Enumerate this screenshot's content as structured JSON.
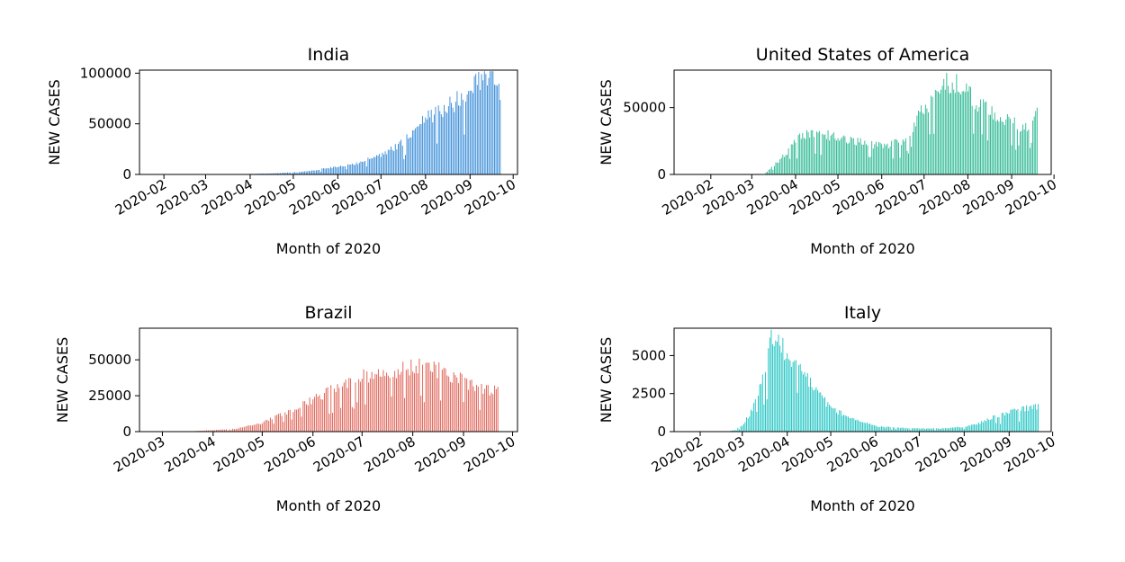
{
  "chart_data": [
    {
      "type": "bar",
      "title": "India",
      "xlabel": "Month of 2020",
      "ylabel": "NEW CASES",
      "color": "#2e86d6",
      "xlim": [
        "2020-01-15",
        "2020-10-04"
      ],
      "ylim": [
        0,
        103000
      ],
      "xticks": [
        "2020-02",
        "2020-03",
        "2020-04",
        "2020-05",
        "2020-06",
        "2020-07",
        "2020-08",
        "2020-09",
        "2020-10"
      ],
      "yticks": [
        0,
        50000,
        100000
      ],
      "ytick_labels": [
        "0",
        "50000",
        "100000"
      ],
      "grid": false,
      "legend": "none",
      "start_date": "2020-01-30",
      "end_date": "2020-09-22",
      "series": [
        {
          "points": [
            [
              "2020-01-30",
              0
            ],
            [
              "2020-03-01",
              5
            ],
            [
              "2020-03-15",
              30
            ],
            [
              "2020-03-25",
              100
            ],
            [
              "2020-04-01",
              500
            ],
            [
              "2020-04-15",
              1000
            ],
            [
              "2020-05-01",
              2000
            ],
            [
              "2020-05-15",
              3800
            ],
            [
              "2020-06-01",
              8000
            ],
            [
              "2020-06-15",
              11000
            ],
            [
              "2020-07-01",
              19000
            ],
            [
              "2020-07-15",
              30000
            ],
            [
              "2020-08-01",
              55000
            ],
            [
              "2020-08-15",
              64000
            ],
            [
              "2020-09-01",
              80000
            ],
            [
              "2020-09-10",
              95000
            ],
            [
              "2020-09-16",
              97000
            ],
            [
              "2020-09-20",
              90000
            ],
            [
              "2020-09-22",
              76000
            ]
          ]
        }
      ]
    },
    {
      "type": "bar",
      "title": "United States of America",
      "xlabel": "Month of 2020",
      "ylabel": "NEW CASES",
      "color": "#1bb38a",
      "xlim": [
        "2020-01-06",
        "2020-09-29"
      ],
      "ylim": [
        0,
        78000
      ],
      "xticks": [
        "2020-02",
        "2020-03",
        "2020-04",
        "2020-05",
        "2020-06",
        "2020-07",
        "2020-08",
        "2020-09",
        "2020-10"
      ],
      "yticks": [
        0,
        50000
      ],
      "ytick_labels": [
        "0",
        "50000"
      ],
      "grid": false,
      "legend": "none",
      "start_date": "2020-01-21",
      "end_date": "2020-09-19",
      "series": [
        {
          "points": [
            [
              "2020-01-21",
              0
            ],
            [
              "2020-03-01",
              20
            ],
            [
              "2020-03-10",
              300
            ],
            [
              "2020-03-20",
              10000
            ],
            [
              "2020-03-27",
              18000
            ],
            [
              "2020-04-05",
              30000
            ],
            [
              "2020-04-15",
              30000
            ],
            [
              "2020-05-01",
              28000
            ],
            [
              "2020-05-15",
              24000
            ],
            [
              "2020-06-01",
              21000
            ],
            [
              "2020-06-15",
              24000
            ],
            [
              "2020-07-01",
              48000
            ],
            [
              "2020-07-15",
              66000
            ],
            [
              "2020-07-25",
              68000
            ],
            [
              "2020-08-05",
              55000
            ],
            [
              "2020-08-15",
              47000
            ],
            [
              "2020-09-01",
              40000
            ],
            [
              "2020-09-10",
              33000
            ],
            [
              "2020-09-19",
              44000
            ]
          ]
        }
      ]
    },
    {
      "type": "bar",
      "title": "Brazil",
      "xlabel": "Month of 2020",
      "ylabel": "NEW CASES",
      "color": "#e0665a",
      "xlim": [
        "2020-02-16",
        "2020-10-04"
      ],
      "ylim": [
        0,
        72000
      ],
      "xticks": [
        "2020-03",
        "2020-04",
        "2020-05",
        "2020-06",
        "2020-07",
        "2020-08",
        "2020-09",
        "2020-10"
      ],
      "yticks": [
        0,
        25000,
        50000
      ],
      "ytick_labels": [
        "0",
        "25000",
        "50000"
      ],
      "grid": false,
      "legend": "none",
      "start_date": "2020-02-26",
      "end_date": "2020-09-22",
      "series": [
        {
          "points": [
            [
              "2020-02-26",
              0
            ],
            [
              "2020-03-15",
              50
            ],
            [
              "2020-04-01",
              1000
            ],
            [
              "2020-04-15",
              2000
            ],
            [
              "2020-05-01",
              6000
            ],
            [
              "2020-05-15",
              13000
            ],
            [
              "2020-06-01",
              22000
            ],
            [
              "2020-06-15",
              30000
            ],
            [
              "2020-07-01",
              38000
            ],
            [
              "2020-07-15",
              40000
            ],
            [
              "2020-08-01",
              45000
            ],
            [
              "2020-08-15",
              43000
            ],
            [
              "2020-09-01",
              35000
            ],
            [
              "2020-09-10",
              30000
            ],
            [
              "2020-09-22",
              28000
            ]
          ]
        }
      ]
    },
    {
      "type": "bar",
      "title": "Italy",
      "xlabel": "Month of 2020",
      "ylabel": "NEW CASES",
      "color": "#16c2c0",
      "xlim": [
        "2020-01-14",
        "2020-09-30"
      ],
      "ylim": [
        0,
        6800
      ],
      "xticks": [
        "2020-02",
        "2020-03",
        "2020-04",
        "2020-05",
        "2020-06",
        "2020-07",
        "2020-08",
        "2020-09",
        "2020-10"
      ],
      "yticks": [
        0,
        2500,
        5000
      ],
      "ytick_labels": [
        "0",
        "2500",
        "5000"
      ],
      "grid": false,
      "legend": "none",
      "start_date": "2020-01-31",
      "end_date": "2020-09-21",
      "series": [
        {
          "points": [
            [
              "2020-01-31",
              0
            ],
            [
              "2020-02-20",
              10
            ],
            [
              "2020-02-25",
              100
            ],
            [
              "2020-03-01",
              400
            ],
            [
              "2020-03-08",
              1400
            ],
            [
              "2020-03-14",
              3000
            ],
            [
              "2020-03-21",
              6000
            ],
            [
              "2020-03-28",
              5500
            ],
            [
              "2020-04-05",
              4500
            ],
            [
              "2020-04-15",
              3500
            ],
            [
              "2020-05-01",
              1500
            ],
            [
              "2020-05-15",
              900
            ],
            [
              "2020-06-01",
              350
            ],
            [
              "2020-06-15",
              250
            ],
            [
              "2020-07-01",
              200
            ],
            [
              "2020-07-15",
              200
            ],
            [
              "2020-08-01",
              300
            ],
            [
              "2020-08-10",
              500
            ],
            [
              "2020-08-20",
              900
            ],
            [
              "2020-09-01",
              1300
            ],
            [
              "2020-09-10",
              1500
            ],
            [
              "2020-09-21",
              1650
            ]
          ]
        }
      ]
    }
  ]
}
